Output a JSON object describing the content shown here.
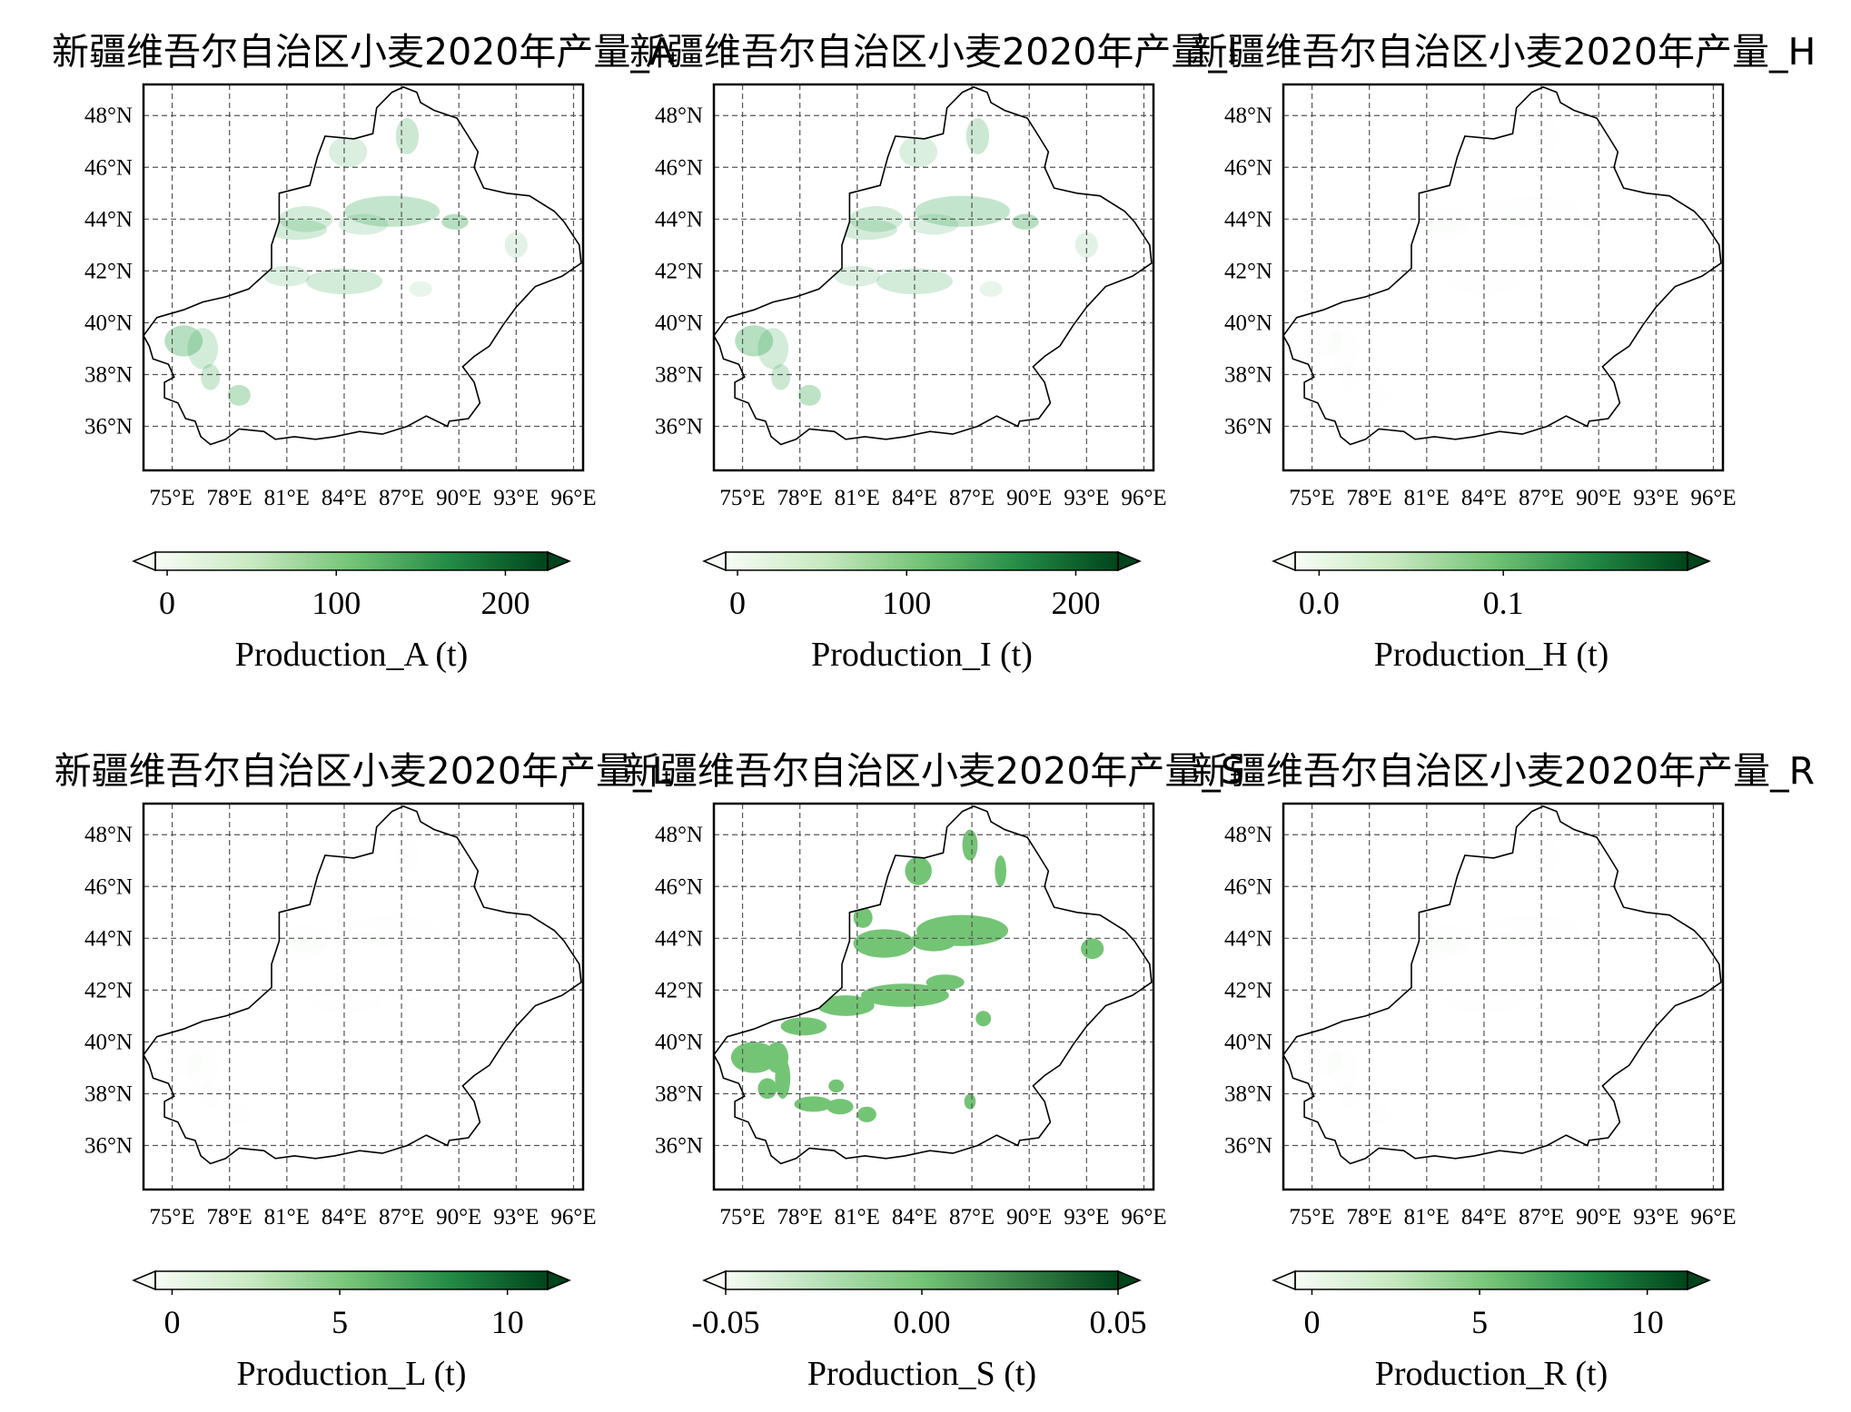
{
  "figure": {
    "panels": [
      {
        "title": "新疆维吾尔自治区小麦2020年产量_A",
        "colorbar_label": "Production_A (t)",
        "colorbar_ticks": [
          "0",
          "100",
          "200"
        ],
        "colorbar_min": -7,
        "colorbar_max": 225,
        "tick_values": [
          0,
          100,
          200
        ],
        "fill_intensity": 0.12
      },
      {
        "title": "新疆维吾尔自治区小麦2020年产量_I",
        "colorbar_label": "Production_I (t)",
        "colorbar_ticks": [
          "0",
          "100",
          "200"
        ],
        "colorbar_min": -7,
        "colorbar_max": 225,
        "tick_values": [
          0,
          100,
          200
        ],
        "fill_intensity": 0.12
      },
      {
        "title": "新疆维吾尔自治区小麦2020年产量_H",
        "colorbar_label": "Production_H (t)",
        "colorbar_ticks": [
          "0.0",
          "0.1"
        ],
        "colorbar_min": -0.013,
        "colorbar_max": 0.2,
        "tick_values": [
          0.0,
          0.1
        ],
        "fill_intensity": 0.03
      },
      {
        "title": "新疆维吾尔自治区小麦2020年产量_L",
        "colorbar_label": "Production_L (t)",
        "colorbar_ticks": [
          "0",
          "5",
          "10"
        ],
        "colorbar_min": -0.5,
        "colorbar_max": 11.2,
        "tick_values": [
          0,
          5,
          10
        ],
        "fill_intensity": 0.03
      },
      {
        "title": "新疆维吾尔自治区小麦2020年产量_S",
        "colorbar_label": "Production_S (t)",
        "colorbar_ticks": [
          "-0.05",
          "0.00",
          "0.05"
        ],
        "colorbar_min": -0.05,
        "colorbar_max": 0.05,
        "tick_values": [
          -0.05,
          0.0,
          0.05
        ],
        "fill_intensity": 0.5
      },
      {
        "title": "新疆维吾尔自治区小麦2020年产量_R",
        "colorbar_label": "Production_R (t)",
        "colorbar_ticks": [
          "0",
          "5",
          "10"
        ],
        "colorbar_min": -0.5,
        "colorbar_max": 11.2,
        "tick_values": [
          0,
          5,
          10
        ],
        "fill_intensity": 0.03
      }
    ],
    "lon_labels": [
      "75°E",
      "78°E",
      "81°E",
      "84°E",
      "87°E",
      "90°E",
      "93°E",
      "96°E"
    ],
    "lat_labels": [
      "48°N",
      "46°N",
      "44°N",
      "42°N",
      "40°N",
      "38°N",
      "36°N"
    ],
    "colors": {
      "cmap": [
        "#f7fcf5",
        "#c7e9c0",
        "#74c476",
        "#238b45",
        "#00441b"
      ],
      "boundary": "#000000",
      "grid": "#555555",
      "highlight_fill": "#74c476"
    }
  },
  "chart_data": [
    {
      "type": "heatmap",
      "title": "新疆维吾尔自治区小麦2020年产量_A",
      "colorbar_label": "Production_A (t)",
      "colorbar_ticks": [
        0,
        100,
        200
      ],
      "lon_range": [
        73.5,
        96.5
      ],
      "lat_range": [
        34.3,
        49.2
      ],
      "grid": true,
      "cmap": "Greens",
      "extend": "both"
    },
    {
      "type": "heatmap",
      "title": "新疆维吾尔自治区小麦2020年产量_I",
      "colorbar_label": "Production_I (t)",
      "colorbar_ticks": [
        0,
        100,
        200
      ],
      "lon_range": [
        73.5,
        96.5
      ],
      "lat_range": [
        34.3,
        49.2
      ],
      "grid": true,
      "cmap": "Greens",
      "extend": "both"
    },
    {
      "type": "heatmap",
      "title": "新疆维吾尔自治区小麦2020年产量_H",
      "colorbar_label": "Production_H (t)",
      "colorbar_ticks": [
        0.0,
        0.1
      ],
      "lon_range": [
        73.5,
        96.5
      ],
      "lat_range": [
        34.3,
        49.2
      ],
      "grid": true,
      "cmap": "Greens",
      "extend": "both"
    },
    {
      "type": "heatmap",
      "title": "新疆维吾尔自治区小麦2020年产量_L",
      "colorbar_label": "Production_L (t)",
      "colorbar_ticks": [
        0,
        5,
        10
      ],
      "lon_range": [
        73.5,
        96.5
      ],
      "lat_range": [
        34.3,
        49.2
      ],
      "grid": true,
      "cmap": "Greens",
      "extend": "both"
    },
    {
      "type": "heatmap",
      "title": "新疆维吾尔自治区小麦2020年产量_S",
      "colorbar_label": "Production_S (t)",
      "colorbar_ticks": [
        -0.05,
        0.0,
        0.05
      ],
      "lon_range": [
        73.5,
        96.5
      ],
      "lat_range": [
        34.3,
        49.2
      ],
      "grid": true,
      "cmap": "Greens",
      "extend": "both"
    },
    {
      "type": "heatmap",
      "title": "新疆维吾尔自治区小麦2020年产量_R",
      "colorbar_label": "Production_R (t)",
      "colorbar_ticks": [
        0,
        5,
        10
      ],
      "lon_range": [
        73.5,
        96.5
      ],
      "lat_range": [
        34.3,
        49.2
      ],
      "grid": true,
      "cmap": "Greens",
      "extend": "both"
    }
  ]
}
